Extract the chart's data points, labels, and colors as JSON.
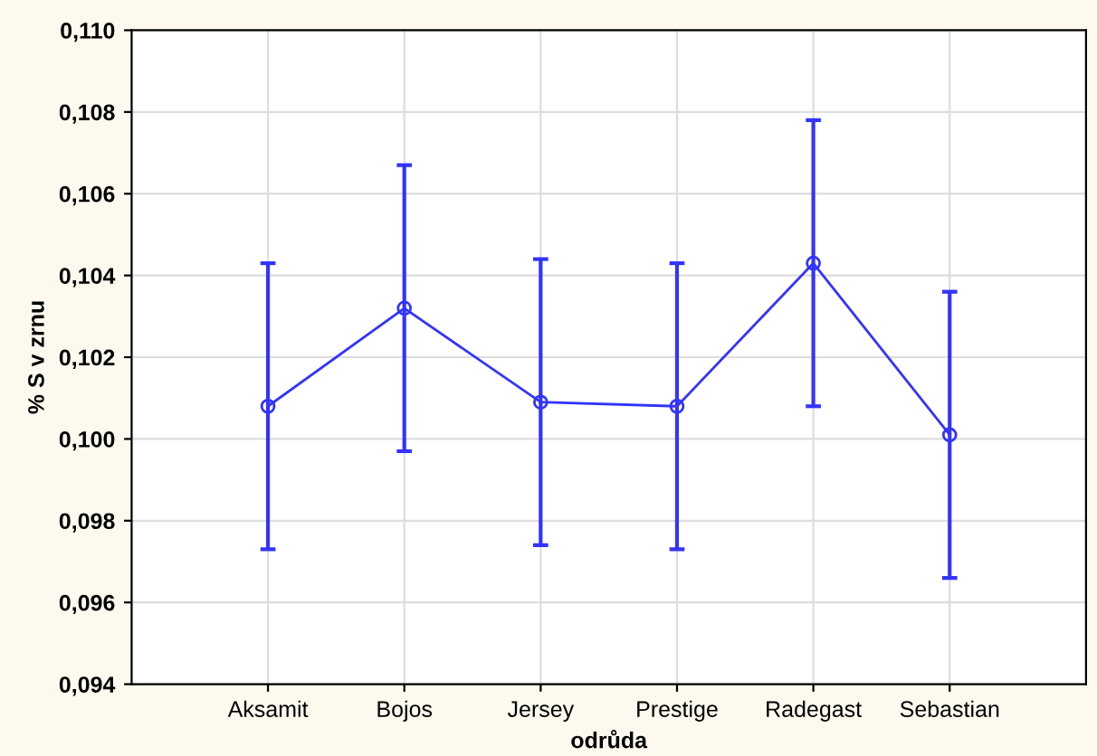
{
  "chart_data": {
    "type": "line",
    "xlabel": "odrůda",
    "ylabel": "% S v zrnu",
    "categories": [
      "Aksamit",
      "Bojos",
      "Jersey",
      "Prestige",
      "Radegast",
      "Sebastian"
    ],
    "series": [
      {
        "color": "#3333ff",
        "values": [
          0.1008,
          0.1032,
          0.1009,
          0.1008,
          0.1043,
          0.1001
        ],
        "errors": [
          0.0035,
          0.0035,
          0.0035,
          0.0035,
          0.0035,
          0.0035
        ]
      }
    ],
    "ylim": [
      0.094,
      0.11
    ],
    "yticks": [
      {
        "value": 0.094,
        "label": "0,094"
      },
      {
        "value": 0.096,
        "label": "0,096"
      },
      {
        "value": 0.098,
        "label": "0,098"
      },
      {
        "value": 0.1,
        "label": "0,100"
      },
      {
        "value": 0.102,
        "label": "0,102"
      },
      {
        "value": 0.104,
        "label": "0,104"
      },
      {
        "value": 0.106,
        "label": "0,106"
      },
      {
        "value": 0.108,
        "label": "0,108"
      },
      {
        "value": 0.11,
        "label": "0,110"
      }
    ],
    "grid": true,
    "marker": "circle",
    "line_style": "solid"
  }
}
